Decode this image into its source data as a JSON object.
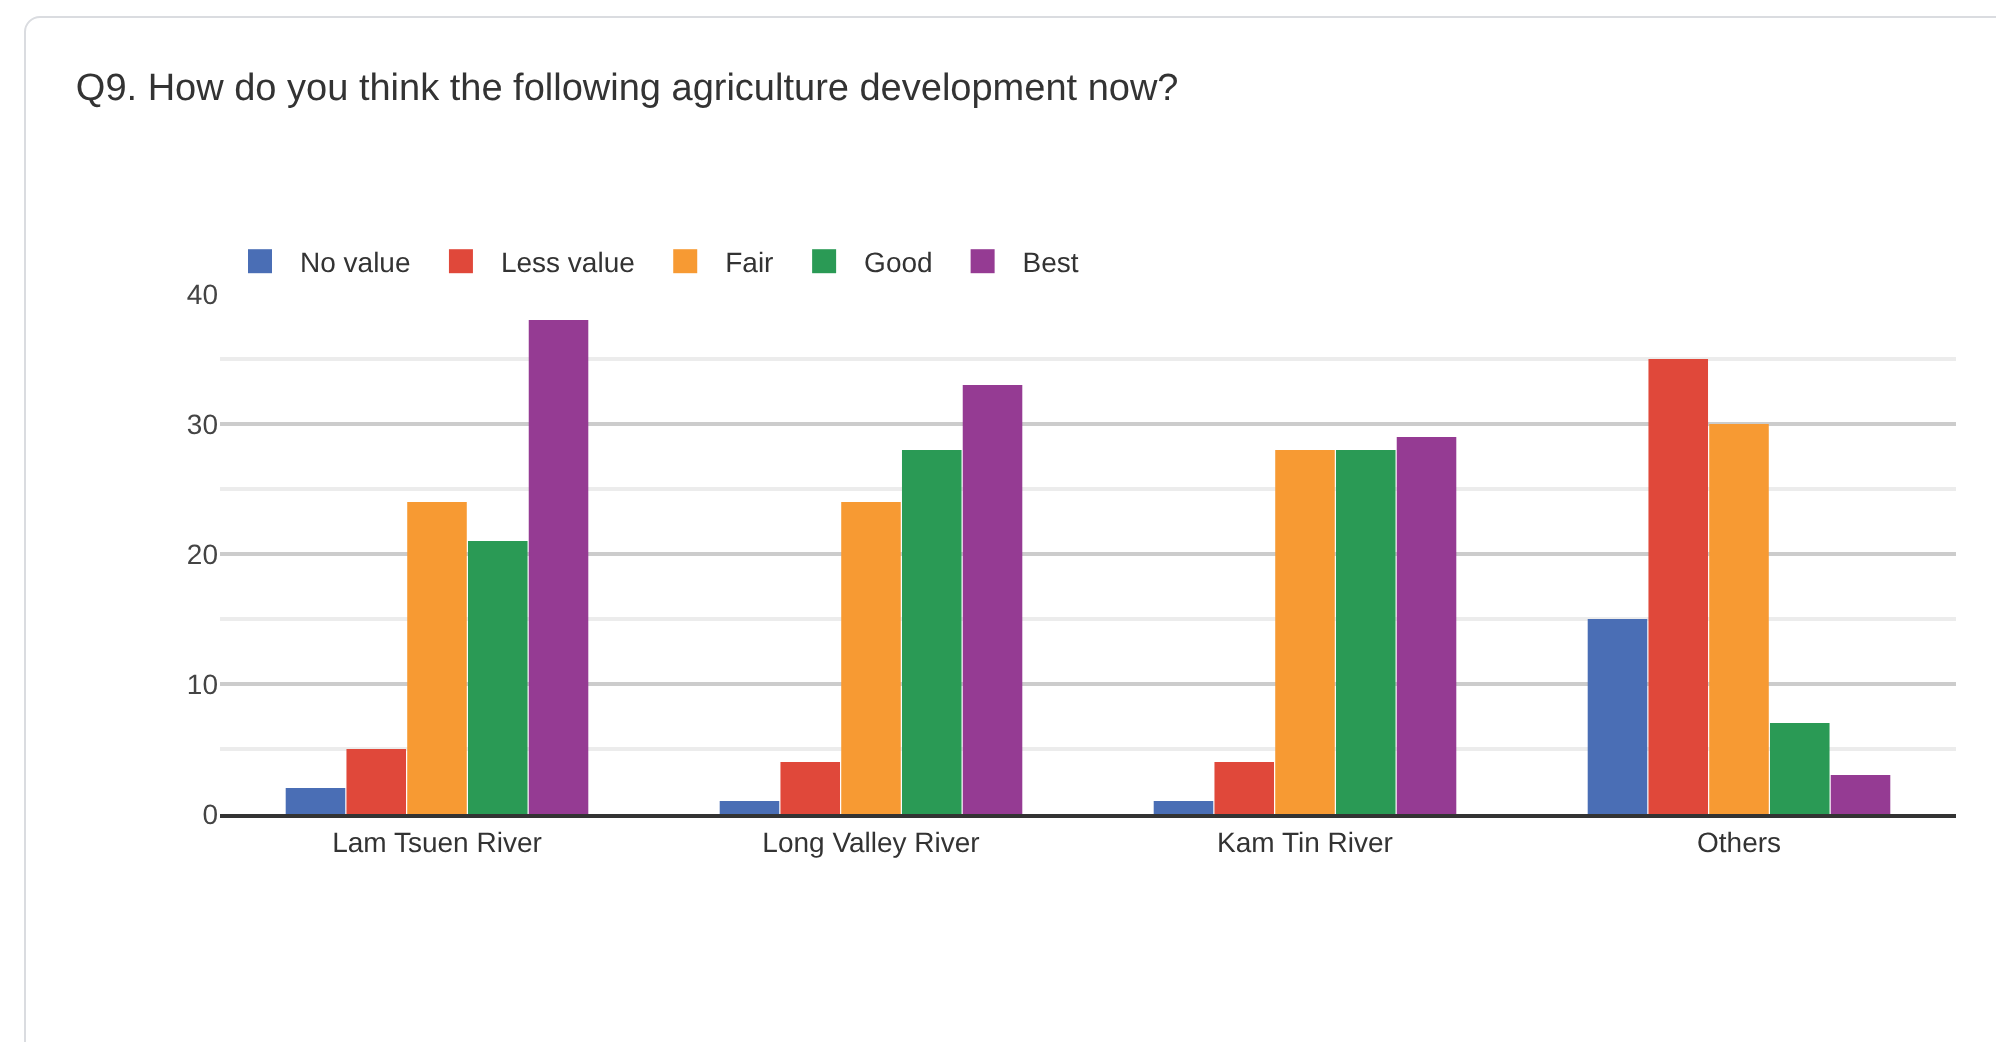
{
  "chart_data": {
    "type": "bar",
    "title": "Q9. How do you think the following agriculture development now?",
    "categories": [
      "Lam Tsuen River",
      "Long Valley River",
      "Kam Tin River",
      "Others"
    ],
    "series": [
      {
        "name": "No value",
        "color": "#4a6eb5",
        "values": [
          2,
          1,
          1,
          15
        ]
      },
      {
        "name": "Less value",
        "color": "#e0483a",
        "values": [
          5,
          4,
          4,
          35
        ]
      },
      {
        "name": "Fair",
        "color": "#f79a33",
        "values": [
          24,
          24,
          28,
          30
        ]
      },
      {
        "name": "Good",
        "color": "#2a9a55",
        "values": [
          21,
          28,
          28,
          7
        ]
      },
      {
        "name": "Best",
        "color": "#953b93",
        "values": [
          38,
          33,
          29,
          3
        ]
      }
    ],
    "ylim": [
      0,
      40
    ],
    "yticks": [
      0,
      10,
      20,
      30,
      40
    ],
    "grid": "y",
    "legend": "top left"
  }
}
